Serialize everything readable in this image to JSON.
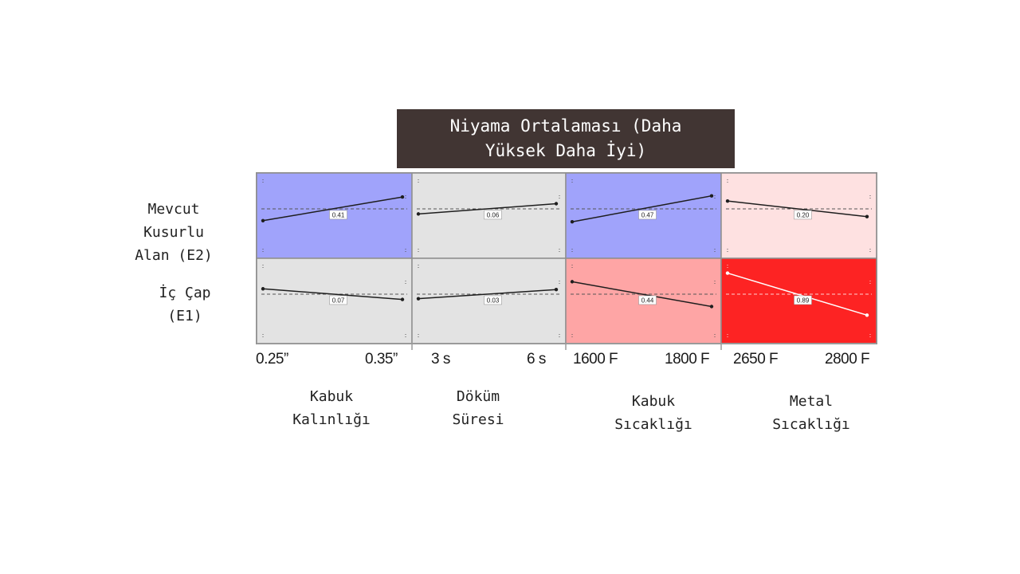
{
  "title": "Niyama Ortalaması (Daha\nYüksek Daha İyi)",
  "rows": [
    {
      "label": "Mevcut\nKusurlu\nAlan (E2)"
    },
    {
      "label": "İç Çap\n(E1)"
    }
  ],
  "columns": [
    {
      "label": "Kabuk\nKalınlığı",
      "low": "0.25”",
      "high": "0.35”"
    },
    {
      "label": "Döküm\nSüresi",
      "low": "3 s",
      "high": "6 s"
    },
    {
      "label": "Kabuk\nSıcaklığı",
      "low": "1600 F",
      "high": "1800 F"
    },
    {
      "label": "Metal\nSıcaklığı",
      "low": "2650 F",
      "high": "2800 F"
    }
  ],
  "colors": {
    "blue": "#a0a3fb",
    "gray": "#e3e3e3",
    "light_pink": "#fee1e1",
    "salmon": "#fea5a5",
    "red": "#fd2323",
    "title_bg": "#413533"
  },
  "chart_data": {
    "type": "heatmap",
    "title": "Niyama Ortalaması (Daha Yüksek Daha İyi)",
    "rows": [
      "Mevcut Kusurlu Alan (E2)",
      "İç Çap (E1)"
    ],
    "columns": [
      "Kabuk Kalınlığı",
      "Döküm Süresi",
      "Kabuk Sıcaklığı",
      "Metal Sıcaklığı"
    ],
    "cells": [
      [
        {
          "value": "0.41",
          "sign": -1,
          "color": "#a0a3fb"
        },
        {
          "value": "0.06",
          "sign": -1,
          "color": "#e3e3e3"
        },
        {
          "value": "0.47",
          "sign": -1,
          "color": "#a0a3fb"
        },
        {
          "value": "0.20",
          "sign": 1,
          "color": "#fee1e1"
        }
      ],
      [
        {
          "value": "0.07",
          "sign": 1,
          "color": "#e3e3e3"
        },
        {
          "value": "0.03",
          "sign": -1,
          "color": "#e3e3e3"
        },
        {
          "value": "0.44",
          "sign": 1,
          "color": "#fea5a5"
        },
        {
          "value": "0.89",
          "sign": 1,
          "color": "#fd2323"
        }
      ]
    ]
  }
}
